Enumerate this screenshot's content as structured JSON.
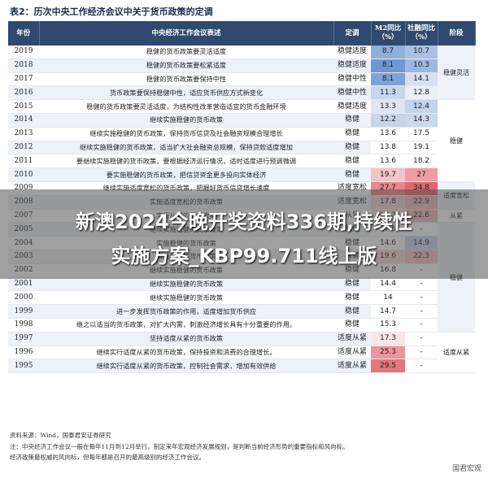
{
  "title": "表2：历次中央工作经济会议中关于货币政策的定调",
  "headers": {
    "year": "年份",
    "desc": "中央经济工作会议表述",
    "tone": "定调",
    "m2": "M2同比（%）",
    "tsf": "社融同比（%）",
    "stage": "阶段"
  },
  "rows": [
    {
      "year": "2019",
      "desc": "稳健的货币政策要灵活适度",
      "tone": "稳健适度",
      "m2": "8.7",
      "tsf": "10.7",
      "m2_color": "#8db0dd",
      "tsf_color": "#a9c1e3"
    },
    {
      "year": "2018",
      "desc": "稳健的货币政策要松紧适度",
      "tone": "稳健适度",
      "m2": "8.1",
      "tsf": "10.3",
      "m2_color": "#6f97d2",
      "tsf_color": "#9cb8df"
    },
    {
      "year": "2017",
      "desc": "稳健的货币政策要保持中性",
      "tone": "稳健中性",
      "m2": "8.1",
      "tsf": "14.1",
      "m2_color": "#7fa2d6",
      "tsf_color": "#d5e0f0"
    },
    {
      "year": "2016",
      "desc": "货币政策要保持稳健中性，适应货币供应方式新变化",
      "tone": "稳健中性",
      "m2": "11.3",
      "tsf": "12.8",
      "m2_color": "#c8d6ec",
      "tsf_color": "#e9eef7"
    },
    {
      "year": "2015",
      "desc": "稳健的货币政策要灵活适度，为结构性改革营造适宜的货币金融环境",
      "tone": "稳健适度",
      "m2": "13.3",
      "tsf": "12.4",
      "m2_color": "#dfe6f2",
      "tsf_color": "#c3d3eb"
    },
    {
      "year": "2014",
      "desc": "继续实施稳健的货币政策",
      "tone": "稳健",
      "m2": "12.2",
      "tsf": "14.3",
      "m2_color": "#c6d5ec",
      "tsf_color": "#cbd8ee"
    },
    {
      "year": "2013",
      "desc": "继续实施稳健的货币政策，保持货币信贷及社会融资规模合理增长",
      "tone": "稳健",
      "m2": "13.6",
      "tsf": "17.5",
      "m2_color": "#ffffff",
      "tsf_color": "#ffffff"
    },
    {
      "year": "2012",
      "desc": "继续实施稳健的货币政策，适当扩大社会融资总规模，保持贷款适度增加",
      "tone": "稳健",
      "m2": "13.8",
      "tsf": "19.1",
      "m2_color": "#ffffff",
      "tsf_color": "#ffffff"
    },
    {
      "year": "2011",
      "desc": "要继续实施稳健的货币政策，要根据经济运行情况，适时适度进行预调微调",
      "tone": "稳健",
      "m2": "13.6",
      "tsf": "18.2",
      "m2_color": "#ffffff",
      "tsf_color": "#ffffff"
    },
    {
      "year": "2010",
      "desc": "要实施稳健的货币政策，把信贷资金更多投向实体经济",
      "tone": "稳健",
      "m2": "19.7",
      "tsf": "27",
      "m2_color": "#f3c3c6",
      "tsf_color": "#ee9da3"
    },
    {
      "year": "2009",
      "desc": "继续实施适度宽松的货币政策，把握好货币信贷增长速度",
      "tone": "适度宽松",
      "m2": "27.7",
      "tsf": "34.8",
      "m2_color": "#e9868d",
      "tsf_color": "#e0666f"
    },
    {
      "year": "2008",
      "desc": "实施适度宽松的货币政策",
      "tone": "适度宽松",
      "m2": "17.8",
      "tsf": "22.9",
      "m2_color": "#f5d0d2",
      "tsf_color": "#f2b8bc"
    },
    {
      "year": "2007",
      "desc": "实行从紧的货币政策",
      "tone": "从紧",
      "m2": "16.7",
      "tsf": "22.6",
      "m2_color": "#f8e0e1",
      "tsf_color": "#f2b8bc"
    },
    {
      "year": "2005",
      "desc": "继续实施稳健的货币政策",
      "tone": "稳健",
      "m2": "17.6",
      "tsf": "-",
      "m2_color": "#ffffff",
      "tsf_color": "#ffffff"
    },
    {
      "year": "2004",
      "desc": "实施稳健的货币政策",
      "tone": "稳健",
      "m2": "14.6",
      "tsf": "14.9",
      "m2_color": "#ffffff",
      "tsf_color": "#cbd8ee"
    },
    {
      "year": "2003",
      "desc": "实施稳健的货币政策",
      "tone": "稳健",
      "m2": "19.6",
      "tsf": "22.3",
      "m2_color": "#f8dadb",
      "tsf_color": "#f3c3c6"
    },
    {
      "year": "2002",
      "desc": "继续实施稳健的货币政策",
      "tone": "稳健",
      "m2": "16.8",
      "tsf": "-",
      "m2_color": "#ffffff",
      "tsf_color": "#ffffff"
    },
    {
      "year": "2001",
      "desc": "继续实施稳健的货币政策",
      "tone": "稳健",
      "m2": "14.4",
      "tsf": "-",
      "m2_color": "#ffffff",
      "tsf_color": "#ffffff"
    },
    {
      "year": "2000",
      "desc": "继续实施稳健的货币政策",
      "tone": "稳健",
      "m2": "14",
      "tsf": "-",
      "m2_color": "#ffffff",
      "tsf_color": "#ffffff"
    },
    {
      "year": "1999",
      "desc": "进一步发挥货币政策的作用，适度增加货币供应",
      "tone": "稳健",
      "m2": "14.7",
      "tsf": "-",
      "m2_color": "#ffffff",
      "tsf_color": "#ffffff"
    },
    {
      "year": "1998",
      "desc": "继之以适当的货币政策，对扩大内需，刺激经济增长具有十分重要的作用。",
      "tone": "稳健",
      "m2": "15.3",
      "tsf": "-",
      "m2_color": "#ffffff",
      "tsf_color": "#ffffff"
    },
    {
      "year": "1997",
      "desc": "坚持适度从紧的货币政策",
      "tone": "适度从紧",
      "m2": "17.3",
      "tsf": "-",
      "m2_color": "#fae6e7",
      "tsf_color": "#ffffff"
    },
    {
      "year": "1996",
      "desc": "继续实行适度从紧的货币政策，保持投资和消费的合理增长。",
      "tone": "适度从紧",
      "m2": "25.3",
      "tsf": "-",
      "m2_color": "#ec959b",
      "tsf_color": "#ffffff"
    },
    {
      "year": "1995",
      "desc": "继续实行适度从紧的货币政策，控制社会需求，增加有效供给",
      "tone": "适度从紧",
      "m2": "29.5",
      "tsf": "-",
      "m2_color": "#e4767e",
      "tsf_color": "#ffffff"
    }
  ],
  "stages": [
    {
      "label": "稳健灵活"
    },
    {
      "label": "稳健"
    },
    {
      "label": "适度宽松"
    },
    {
      "label": "从紧"
    },
    {
      "label": "稳健"
    },
    {
      "label": "适度从紧"
    }
  ],
  "notes": {
    "source": "资料来源：Wind，国泰君安证券研究",
    "line1": "注：中央经济工作会议一般在每年11月到12月举行，制定来年宏观经济发展规划，是判断当前经济形势的重要指标和风向标。",
    "line2": "经济政策最权威的风向标，但每年都是召开的最高级别的经济工作会议。"
  },
  "overlay": {
    "line1": "新澳2024今晚开奖资料336期,持续性",
    "line2": "实施方案_KBP99.711线上版"
  },
  "watermark": "国君宏观"
}
